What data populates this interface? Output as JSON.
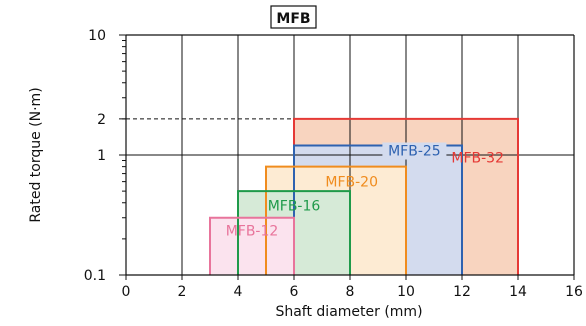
{
  "chart_data": {
    "type": "area",
    "title": "MFB",
    "xlabel": "Shaft diameter (mm)",
    "ylabel": "Rated torque (N·m)",
    "xlim": [
      0,
      16
    ],
    "ylim": [
      0.1,
      10
    ],
    "yscale": "log",
    "xticks": [
      0,
      2,
      4,
      6,
      8,
      10,
      12,
      14,
      16
    ],
    "yticks": [
      {
        "value": 0.1,
        "label": "0.1"
      },
      {
        "value": 1,
        "label": "1"
      },
      {
        "value": 2,
        "label": "2"
      },
      {
        "value": 10,
        "label": "10"
      }
    ],
    "grid": true,
    "series": [
      {
        "name": "MFB-32",
        "x_range": [
          6,
          14
        ],
        "torque": 2,
        "color": "#e53935",
        "fill": "#f8d4bf"
      },
      {
        "name": "MFB-25",
        "x_range": [
          6,
          12
        ],
        "torque": 1.2,
        "color": "#2e62b0",
        "fill": "#d3dbee"
      },
      {
        "name": "MFB-20",
        "x_range": [
          5,
          10
        ],
        "torque": 0.8,
        "color": "#f08c1e",
        "fill": "#fdebd3"
      },
      {
        "name": "MFB-16",
        "x_range": [
          4,
          8
        ],
        "torque": 0.5,
        "color": "#1f9a4a",
        "fill": "#d6ead7"
      },
      {
        "name": "MFB-12",
        "x_range": [
          3,
          6
        ],
        "torque": 0.3,
        "color": "#e8749b",
        "fill": "#fbe3ee"
      }
    ]
  }
}
